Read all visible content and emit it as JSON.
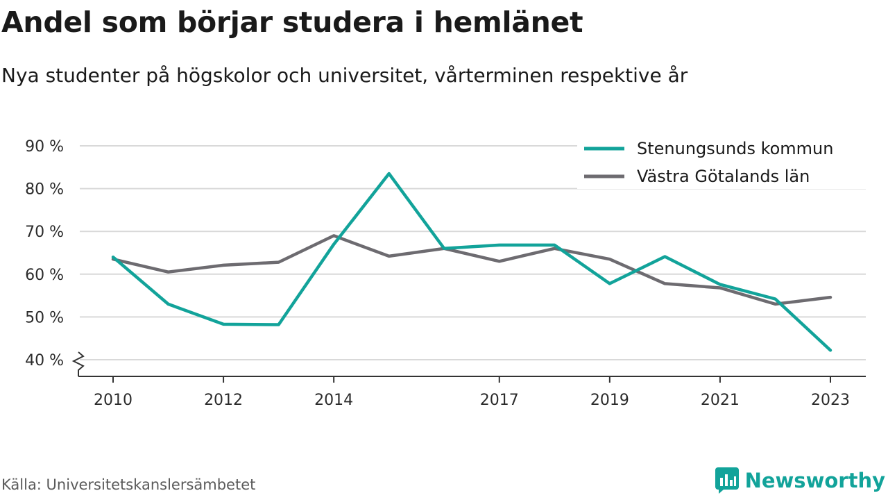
{
  "header": {
    "title": "Andel som börjar studera i hemlänet",
    "subtitle": "Nya studenter på högskolor och universitet, vårterminen respektive år"
  },
  "footer": {
    "source": "Källa: Universitetskanslersämbetet",
    "brand": "Newsworthy",
    "brand_color": "#12a39a"
  },
  "chart_data": {
    "type": "line",
    "x": [
      2010,
      2011,
      2012,
      2013,
      2014,
      2015,
      2016,
      2017,
      2018,
      2019,
      2020,
      2021,
      2022,
      2023
    ],
    "x_tick_labels": [
      "2010",
      "2012",
      "2014",
      "2017",
      "2019",
      "2021",
      "2023"
    ],
    "y_tick_labels": [
      "40 %",
      "50 %",
      "60 %",
      "70 %",
      "80 %",
      "90 %"
    ],
    "ylim": [
      40,
      90
    ],
    "y_axis_break": true,
    "grid": true,
    "legend_position": "top-right",
    "series": [
      {
        "name": "Stenungsunds kommun",
        "color": "#12a39a",
        "values": [
          64.0,
          53.0,
          48.3,
          48.2,
          67.0,
          83.5,
          66.0,
          66.8,
          66.8,
          57.8,
          64.1,
          57.6,
          54.2,
          42.2
        ]
      },
      {
        "name": "Västra Götalands län",
        "color": "#6d6b70",
        "values": [
          63.5,
          60.5,
          62.1,
          62.8,
          69.0,
          64.2,
          66.0,
          63.0,
          66.0,
          63.5,
          57.8,
          56.8,
          53.0,
          54.6
        ]
      }
    ]
  }
}
